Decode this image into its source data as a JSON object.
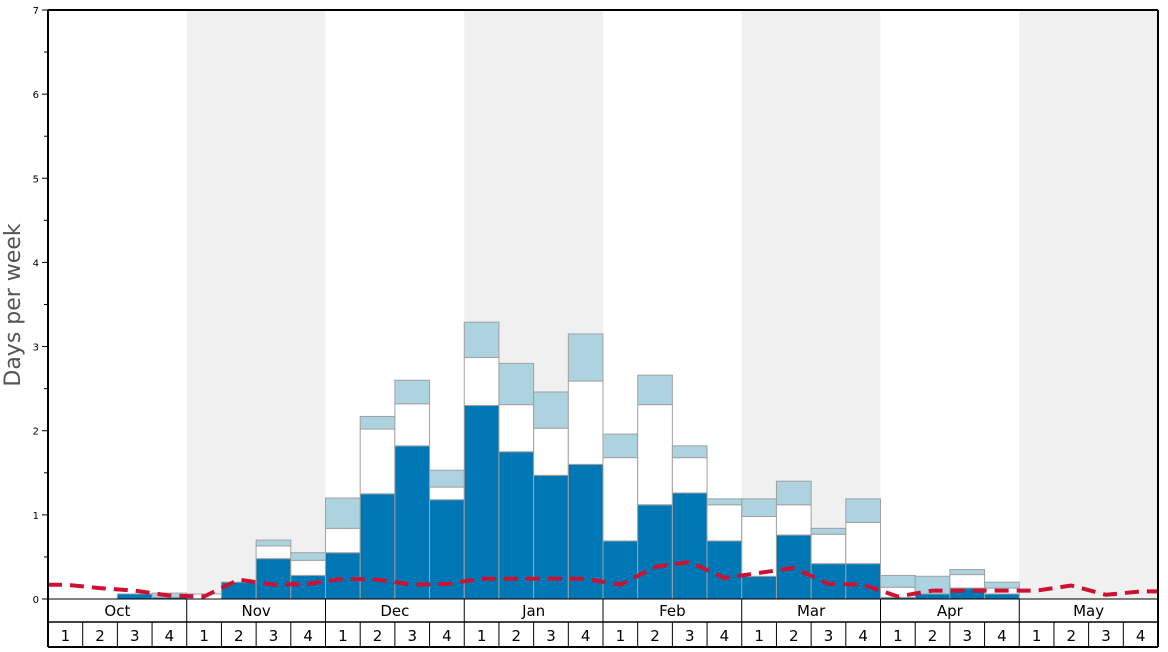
{
  "chart_data": {
    "type": "bar",
    "stacked": true,
    "ylabel": "Days per week",
    "ylim": [
      0,
      7
    ],
    "y_major_ticks": [
      0,
      1,
      2,
      3,
      4,
      5,
      6,
      7
    ],
    "y_tick_labels": [
      "0",
      "1",
      "2",
      "3",
      "4",
      "5",
      "6",
      "7"
    ],
    "months": [
      "Oct",
      "Nov",
      "Dec",
      "Jan",
      "Feb",
      "Mar",
      "Apr",
      "May"
    ],
    "weeks": [
      "1",
      "2",
      "3",
      "4"
    ],
    "band_colors": [
      "#ffffff",
      "#f0f0f0"
    ],
    "series": [
      {
        "color": "#0077b5",
        "values": [
          0,
          0,
          0.06,
          0.02,
          0,
          0.2,
          0.48,
          0.28,
          0.55,
          1.25,
          1.82,
          1.18,
          2.3,
          1.75,
          1.47,
          1.6,
          0.69,
          1.12,
          1.26,
          0.69,
          0.27,
          0.76,
          0.42,
          0.42,
          0.02,
          0.06,
          0.13,
          0.06,
          0,
          0,
          0,
          0
        ]
      },
      {
        "color": "#ffffff",
        "values": [
          0,
          0,
          0,
          0,
          0.06,
          0,
          0.15,
          0.18,
          0.29,
          0.77,
          0.5,
          0.15,
          0.57,
          0.56,
          0.56,
          0.99,
          0.99,
          1.19,
          0.42,
          0.43,
          0.71,
          0.36,
          0.35,
          0.49,
          0.12,
          0,
          0.16,
          0.07,
          0,
          0,
          0,
          0
        ]
      },
      {
        "color": "#aed3e0",
        "values": [
          0,
          0,
          0,
          0.05,
          0,
          0,
          0.07,
          0.09,
          0.36,
          0.15,
          0.28,
          0.2,
          0.42,
          0.49,
          0.43,
          0.56,
          0.28,
          0.35,
          0.14,
          0.07,
          0.21,
          0.28,
          0.07,
          0.28,
          0.14,
          0.21,
          0.06,
          0.07,
          0,
          0,
          0,
          0
        ]
      }
    ],
    "average_line": {
      "color": "#cc1133",
      "style": "dashed",
      "values": [
        0.17,
        0.13,
        0.1,
        0.04,
        0.03,
        0.23,
        0.17,
        0.18,
        0.24,
        0.23,
        0.17,
        0.18,
        0.24,
        0.24,
        0.24,
        0.24,
        0.17,
        0.38,
        0.44,
        0.25,
        0.31,
        0.37,
        0.18,
        0.17,
        0.03,
        0.1,
        0.1,
        0.1,
        0.1,
        0.16,
        0.05,
        0.09
      ]
    },
    "grid": false,
    "legend": "none"
  }
}
